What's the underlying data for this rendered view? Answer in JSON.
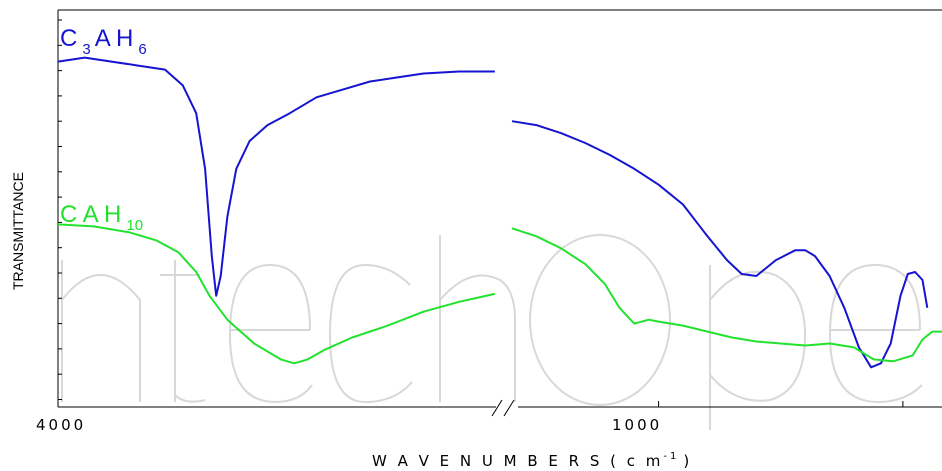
{
  "chart_data": {
    "type": "line",
    "xlabel": "W A V E N U M B E R S  ( c m",
    "xlabel_sup": "-1",
    "xlabel_close": ")",
    "ylabel": "TRANSMITTANCE",
    "xlim": [
      4000,
      0
    ],
    "axis_break": true,
    "grid": false,
    "x_tick_labels": [
      "4000",
      "1000"
    ],
    "series": [
      {
        "name": "C3AH6",
        "label_main": [
          "C",
          "A H"
        ],
        "label_subs": [
          "3",
          "6"
        ],
        "color": "#1414d2",
        "segments": [
          [
            [
              4000,
              0.87
            ],
            [
              3940,
              0.88
            ],
            [
              3880,
              0.87
            ],
            [
              3820,
              0.86
            ],
            [
              3760,
              0.85
            ],
            [
              3720,
              0.81
            ],
            [
              3690,
              0.74
            ],
            [
              3670,
              0.6
            ],
            [
              3655,
              0.38
            ],
            [
              3645,
              0.28
            ],
            [
              3635,
              0.33
            ],
            [
              3620,
              0.48
            ],
            [
              3600,
              0.6
            ],
            [
              3570,
              0.67
            ],
            [
              3530,
              0.71
            ],
            [
              3480,
              0.74
            ],
            [
              3420,
              0.78
            ],
            [
              3360,
              0.8
            ],
            [
              3300,
              0.82
            ],
            [
              3240,
              0.83
            ],
            [
              3180,
              0.84
            ],
            [
              3100,
              0.845
            ],
            [
              3020,
              0.845
            ]
          ],
          [
            [
              1300,
              0.72
            ],
            [
              1250,
              0.71
            ],
            [
              1200,
              0.69
            ],
            [
              1150,
              0.665
            ],
            [
              1100,
              0.635
            ],
            [
              1050,
              0.6
            ],
            [
              1000,
              0.56
            ],
            [
              950,
              0.51
            ],
            [
              900,
              0.43
            ],
            [
              860,
              0.37
            ],
            [
              830,
              0.335
            ],
            [
              800,
              0.33
            ],
            [
              760,
              0.37
            ],
            [
              720,
              0.395
            ],
            [
              700,
              0.395
            ],
            [
              680,
              0.38
            ],
            [
              650,
              0.33
            ],
            [
              620,
              0.25
            ],
            [
              590,
              0.15
            ],
            [
              565,
              0.1
            ],
            [
              545,
              0.11
            ],
            [
              525,
              0.16
            ],
            [
              505,
              0.28
            ],
            [
              490,
              0.335
            ],
            [
              475,
              0.34
            ],
            [
              460,
              0.32
            ],
            [
              450,
              0.25
            ]
          ]
        ]
      },
      {
        "name": "CAH10",
        "label_main": [
          "C A H"
        ],
        "label_subs": [
          "10"
        ],
        "color": "#22e22e",
        "segments": [
          [
            [
              4000,
              0.46
            ],
            [
              3920,
              0.455
            ],
            [
              3840,
              0.44
            ],
            [
              3780,
              0.42
            ],
            [
              3730,
              0.39
            ],
            [
              3690,
              0.34
            ],
            [
              3660,
              0.28
            ],
            [
              3620,
              0.22
            ],
            [
              3560,
              0.16
            ],
            [
              3500,
              0.12
            ],
            [
              3470,
              0.11
            ],
            [
              3440,
              0.12
            ],
            [
              3400,
              0.145
            ],
            [
              3340,
              0.175
            ],
            [
              3260,
              0.205
            ],
            [
              3180,
              0.24
            ],
            [
              3100,
              0.265
            ],
            [
              3020,
              0.285
            ]
          ],
          [
            [
              1300,
              0.45
            ],
            [
              1250,
              0.43
            ],
            [
              1200,
              0.4
            ],
            [
              1150,
              0.36
            ],
            [
              1110,
              0.31
            ],
            [
              1080,
              0.25
            ],
            [
              1050,
              0.21
            ],
            [
              1020,
              0.22
            ],
            [
              1000,
              0.215
            ],
            [
              950,
              0.205
            ],
            [
              900,
              0.19
            ],
            [
              850,
              0.175
            ],
            [
              800,
              0.165
            ],
            [
              750,
              0.16
            ],
            [
              700,
              0.155
            ],
            [
              650,
              0.16
            ],
            [
              600,
              0.15
            ],
            [
              560,
              0.12
            ],
            [
              520,
              0.115
            ],
            [
              480,
              0.13
            ],
            [
              460,
              0.17
            ],
            [
              440,
              0.19
            ],
            [
              420,
              0.19
            ]
          ]
        ]
      }
    ]
  }
}
